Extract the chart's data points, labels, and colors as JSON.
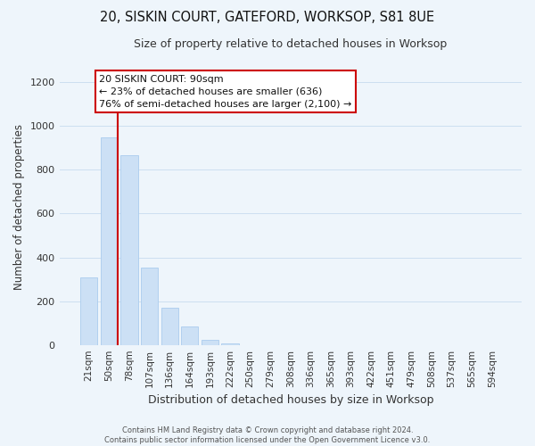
{
  "title": "20, SISKIN COURT, GATEFORD, WORKSOP, S81 8UE",
  "subtitle": "Size of property relative to detached houses in Worksop",
  "xlabel": "Distribution of detached houses by size in Worksop",
  "ylabel": "Number of detached properties",
  "bar_labels": [
    "21sqm",
    "50sqm",
    "78sqm",
    "107sqm",
    "136sqm",
    "164sqm",
    "193sqm",
    "222sqm",
    "250sqm",
    "279sqm",
    "308sqm",
    "336sqm",
    "365sqm",
    "393sqm",
    "422sqm",
    "451sqm",
    "479sqm",
    "508sqm",
    "537sqm",
    "565sqm",
    "594sqm"
  ],
  "bar_heights": [
    310,
    950,
    865,
    355,
    170,
    85,
    25,
    5,
    0,
    0,
    0,
    0,
    0,
    0,
    0,
    0,
    0,
    0,
    0,
    0,
    0
  ],
  "bar_color": "#cce0f5",
  "bar_edge_color": "#aaccee",
  "marker_line_color": "#cc0000",
  "annotation_text": "20 SISKIN COURT: 90sqm\n← 23% of detached houses are smaller (636)\n76% of semi-detached houses are larger (2,100) →",
  "annotation_box_color": "#ffffff",
  "annotation_box_edge": "#cc0000",
  "ylim": [
    0,
    1260
  ],
  "yticks": [
    0,
    200,
    400,
    600,
    800,
    1000,
    1200
  ],
  "footer_text": "Contains HM Land Registry data © Crown copyright and database right 2024.\nContains public sector information licensed under the Open Government Licence v3.0.",
  "grid_color": "#ccdff0",
  "background_color": "#eef5fb",
  "title_fontsize": 10.5,
  "subtitle_fontsize": 9,
  "tick_fontsize": 7.5,
  "ylabel_fontsize": 8.5,
  "xlabel_fontsize": 9
}
